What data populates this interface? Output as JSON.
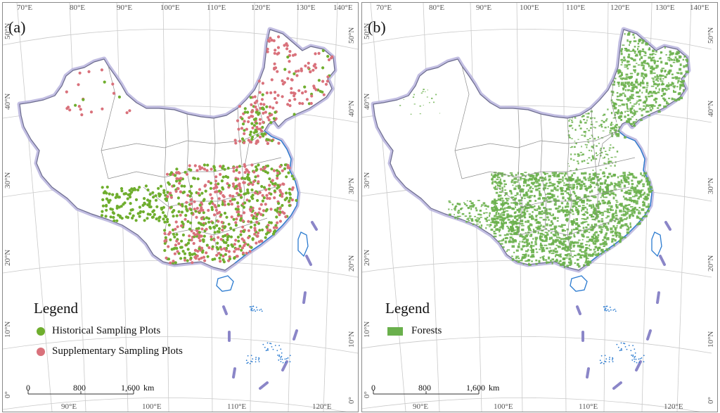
{
  "panels": [
    {
      "label": "(a)",
      "top_ticks": [
        "70°E",
        "80°E",
        "90°E",
        "100°E",
        "110°E",
        "120°E",
        "130°E",
        "140°E"
      ],
      "bottom_ticks": [
        "90°E",
        "100°E",
        "110°E",
        "120°E"
      ],
      "left_ticks": [
        "50°N",
        "40°N",
        "30°N",
        "20°N",
        "10°N",
        "0°"
      ],
      "right_ticks": [
        "50°N",
        "40°N",
        "30°N",
        "20°N",
        "10°N",
        "0°"
      ],
      "legend": {
        "title": "Legend",
        "items": [
          {
            "label": "Historical Sampling Plots",
            "color": "#6fae2e"
          },
          {
            "label": "Supplementary Sampling Plots",
            "color": "#d9717b"
          }
        ]
      },
      "scale": {
        "start": "0",
        "mid": "800",
        "end": "1,600",
        "unit": "km"
      }
    },
    {
      "label": "(b)",
      "top_ticks": [
        "70°E",
        "80°E",
        "90°E",
        "100°E",
        "110°E",
        "120°E",
        "130°E",
        "140°E"
      ],
      "bottom_ticks": [
        "90°E",
        "100°E",
        "110°E",
        "120°E"
      ],
      "left_ticks": [
        "50°N",
        "40°N",
        "30°N",
        "20°N",
        "10°N",
        "0°"
      ],
      "right_ticks": [
        "50°N",
        "40°N",
        "30°N",
        "20°N",
        "10°N",
        "0°"
      ],
      "legend": {
        "title": "Legend",
        "items": [
          {
            "label": "Forests",
            "color": "#6ab04c"
          }
        ]
      },
      "scale": {
        "start": "0",
        "mid": "800",
        "end": "1,600",
        "unit": "km"
      }
    }
  ],
  "colors": {
    "boundary": "#3b3b3b",
    "border_glow": "#b7b3dd",
    "coast": "#2b7bd0",
    "graticule": "#c9c9c9",
    "forest": "#6ab04c",
    "historical": "#6fae2e",
    "supplementary": "#d9717b"
  }
}
